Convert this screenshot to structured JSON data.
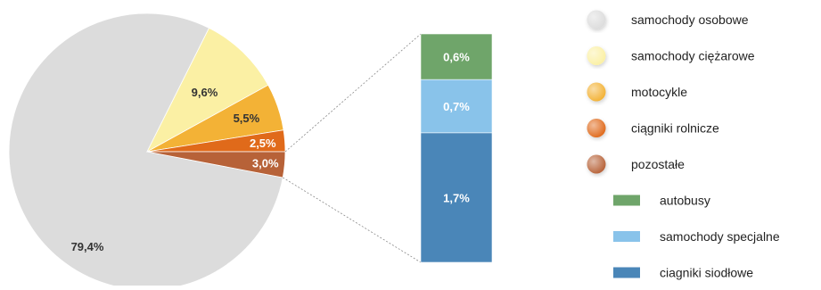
{
  "chart_data": {
    "type": "pie",
    "pie": {
      "slices": [
        {
          "name": "samochody osobowe",
          "value": 79.4,
          "label": "79,4%",
          "color": "#dcdcdc"
        },
        {
          "name": "samochody ciężarowe",
          "value": 9.6,
          "label": "9,6%",
          "color": "#fbf0a4"
        },
        {
          "name": "motocykle",
          "value": 5.5,
          "label": "5,5%",
          "color": "#f3b236"
        },
        {
          "name": "ciągniki rolnicze",
          "value": 2.5,
          "label": "2,5%",
          "color": "#e06a1a"
        },
        {
          "name": "pozostałe",
          "value": 3.0,
          "label": "3,0%",
          "color": "#b76238"
        }
      ]
    },
    "breakdown_bar": {
      "of_slice": "pozostałe",
      "segments": [
        {
          "name": "autobusy",
          "value": 0.6,
          "label": "0,6%",
          "color": "#6fa56a"
        },
        {
          "name": "samochody specjalne",
          "value": 0.7,
          "label": "0,7%",
          "color": "#89c3ea"
        },
        {
          "name": "ciagniki siodłowe",
          "value": 1.7,
          "label": "1,7%",
          "color": "#4a86b8"
        }
      ]
    },
    "legend": {
      "placement": "right",
      "items": [
        {
          "label": "samochody osobowe",
          "color": "#dcdcdc",
          "shape": "circle"
        },
        {
          "label": "samochody ciężarowe",
          "color": "#fbf0a4",
          "shape": "circle"
        },
        {
          "label": "motocykle",
          "color": "#f3b236",
          "shape": "circle"
        },
        {
          "label": "ciągniki rolnicze",
          "color": "#e06a1a",
          "shape": "circle"
        },
        {
          "label": "pozostałe",
          "color": "#b76238",
          "shape": "circle"
        },
        {
          "label": "autobusy",
          "color": "#6fa56a",
          "shape": "square"
        },
        {
          "label": "samochody specjalne",
          "color": "#89c3ea",
          "shape": "square"
        },
        {
          "label": "ciagniki siodłowe",
          "color": "#4a86b8",
          "shape": "square"
        }
      ]
    }
  }
}
